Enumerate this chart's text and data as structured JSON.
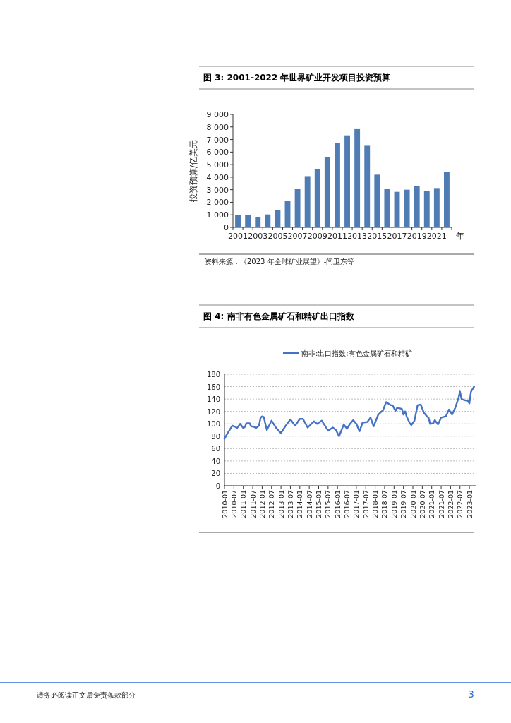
{
  "chart_data": [
    {
      "type": "bar",
      "title": "图 3: 2001-2022 年世界矿业开发项目投资预算",
      "ylabel": "投资预算/亿美元",
      "xlabel": "年",
      "categories": [
        "2001",
        null,
        "2003",
        null,
        "2005",
        null,
        "2007",
        null,
        "2009",
        null,
        "2011",
        null,
        "2013",
        null,
        "2015",
        null,
        "2017",
        null,
        "2019",
        null,
        "2021",
        null
      ],
      "values": [
        980,
        970,
        800,
        1030,
        1370,
        2100,
        3050,
        4080,
        4640,
        5620,
        6730,
        7330,
        7880,
        6500,
        4200,
        3080,
        2830,
        3000,
        3320,
        2870,
        3130,
        4440
      ],
      "color": "#4f7cb3",
      "ylim": [
        0,
        9000
      ],
      "yticks": [
        0,
        {
          "value": 1000,
          "label": "1 000"
        },
        {
          "value": 2000,
          "label": "2 000"
        },
        {
          "value": 3000,
          "label": "3 000"
        },
        {
          "value": 4000,
          "label": "4 000"
        },
        {
          "value": 5000,
          "label": "5 000"
        },
        {
          "value": 6000,
          "label": "6 000"
        },
        {
          "value": 7000,
          "label": "7 000"
        },
        {
          "value": 8000,
          "label": "8 000"
        },
        {
          "value": 9000,
          "label": "9 000"
        }
      ],
      "annotations": [
        "资料来源：《2023 年全球矿业展望》-闫卫东等"
      ]
    },
    {
      "type": "line",
      "title": "图 4: 南非有色金属矿石和精矿出口指数",
      "x": [
        "2010-01",
        "2010-03",
        "2010-06",
        "2010-08",
        "2010-09",
        "2010-11",
        "2011-01",
        "2011-02",
        "2011-03",
        "2011-05",
        "2011-06",
        "2011-08",
        "2011-09",
        "2011-11",
        "2011-12",
        "2012-01",
        "2012-02",
        "2012-04",
        "2012-07",
        "2012-10",
        "2013-01",
        "2013-04",
        "2013-07",
        "2013-10",
        "2014-01",
        "2014-03",
        "2014-06",
        "2014-10",
        "2014-12",
        "2015-03",
        "2015-07",
        "2015-10",
        "2015-12",
        "2016-02",
        "2016-05",
        "2016-07",
        "2016-09",
        "2016-11",
        "2017-01",
        "2017-03",
        "2017-05",
        "2017-08",
        "2017-10",
        "2017-12",
        "2018-03",
        "2018-06",
        "2018-08",
        "2018-11",
        "2018-12",
        "2019-02",
        "2019-03",
        "2019-06",
        "2019-07",
        "2019-08",
        "2019-09",
        "2019-11",
        "2019-12",
        "2020-02",
        "2020-04",
        "2020-06",
        "2020-08",
        "2020-10",
        "2020-11",
        "2020-12",
        "2021-02",
        "2021-03",
        "2021-05",
        "2021-07",
        "2021-10",
        "2021-12",
        "2022-02",
        "2022-04",
        "2022-06",
        "2022-07",
        "2022-08",
        "2022-10",
        "2022-12",
        "2023-01",
        "2023-02",
        "2023-04"
      ],
      "series": [
        {
          "name": "南非:出口指数:有色金属矿石和精矿",
          "color": "#4472c4",
          "values": [
            76,
            85,
            97,
            95,
            93,
            100,
            93,
            95,
            101,
            101,
            96,
            95,
            93,
            97,
            110,
            112,
            111,
            90,
            105,
            93,
            85,
            97,
            107,
            97,
            108,
            108,
            94,
            104,
            100,
            105,
            89,
            94,
            90,
            80,
            99,
            92,
            100,
            106,
            100,
            88,
            102,
            103,
            110,
            96,
            115,
            122,
            135,
            130,
            130,
            121,
            126,
            124,
            115,
            120,
            112,
            101,
            98,
            105,
            130,
            131,
            118,
            112,
            110,
            100,
            101,
            106,
            99,
            110,
            112,
            123,
            115,
            126,
            141,
            152,
            140,
            138,
            137,
            133,
            152,
            160
          ]
        }
      ],
      "xlim": [
        "2010-01",
        "2023-05"
      ],
      "xticks": [
        "2010-01",
        "2010-07",
        "2011-01",
        "2011-07",
        "2012-01",
        "2012-07",
        "2013-01",
        "2013-07",
        "2014-01",
        "2014-07",
        "2015-01",
        "2015-07",
        "2016-01",
        "2016-07",
        "2017-01",
        "2017-07",
        "2018-01",
        "2018-07",
        "2019-01",
        "2019-07",
        "2020-01",
        "2020-07",
        "2021-01",
        "2021-07",
        "2022-01",
        "2022-07",
        "2023-01"
      ],
      "ylim": [
        0,
        180
      ],
      "yticks": [
        0,
        20,
        40,
        60,
        80,
        100,
        120,
        140,
        160,
        180
      ],
      "grid": "y",
      "legend": "top",
      "annotations": [
        "请务必阅读正文后免责条款部分",
        "3"
      ]
    }
  ]
}
